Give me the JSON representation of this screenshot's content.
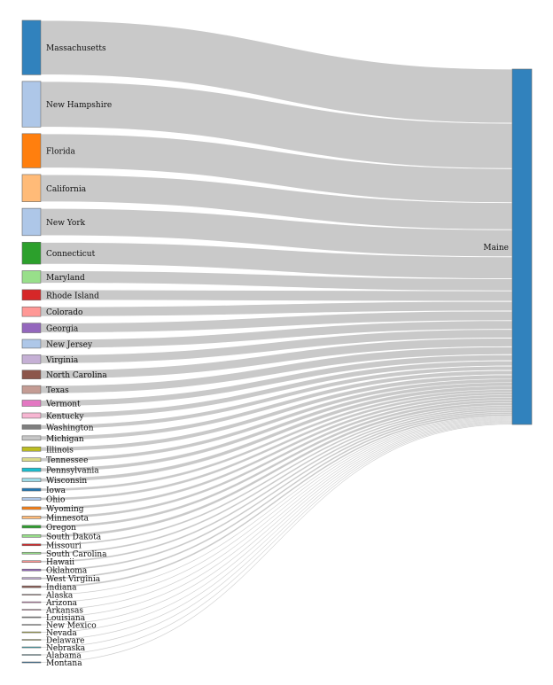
{
  "chart_data": {
    "type": "sankey",
    "target": {
      "name": "Maine",
      "color": "#3182bd"
    },
    "sources": [
      {
        "name": "Massachusetts",
        "value": 62,
        "color": "#3182bd"
      },
      {
        "name": "New Hampshire",
        "value": 52,
        "color": "#aec7e8"
      },
      {
        "name": "Florida",
        "value": 39,
        "color": "#ff7f0e"
      },
      {
        "name": "California",
        "value": 31,
        "color": "#ffbb78"
      },
      {
        "name": "New York",
        "value": 31,
        "color": "#aec7e8"
      },
      {
        "name": "Connecticut",
        "value": 25,
        "color": "#2ca02c"
      },
      {
        "name": "Maryland",
        "value": 14,
        "color": "#98df8a"
      },
      {
        "name": "Rhode Island",
        "value": 12,
        "color": "#d62728"
      },
      {
        "name": "Colorado",
        "value": 11,
        "color": "#ff9896"
      },
      {
        "name": "Georgia",
        "value": 11,
        "color": "#9467bd"
      },
      {
        "name": "New Jersey",
        "value": 10,
        "color": "#aec7e8"
      },
      {
        "name": "Virginia",
        "value": 10,
        "color": "#c5b0d5"
      },
      {
        "name": "North Carolina",
        "value": 10,
        "color": "#8c564b"
      },
      {
        "name": "Texas",
        "value": 9,
        "color": "#c49c94"
      },
      {
        "name": "Vermont",
        "value": 7,
        "color": "#e377c2"
      },
      {
        "name": "Kentucky",
        "value": 6,
        "color": "#f7b6d2"
      },
      {
        "name": "Washington",
        "value": 5,
        "color": "#7f7f7f"
      },
      {
        "name": "Michigan",
        "value": 5,
        "color": "#c7c7c7"
      },
      {
        "name": "Illinois",
        "value": 5,
        "color": "#bcbd22"
      },
      {
        "name": "Tennessee",
        "value": 4,
        "color": "#dbdb8d"
      },
      {
        "name": "Pennsylvania",
        "value": 4,
        "color": "#17becf"
      },
      {
        "name": "Wisconsin",
        "value": 4,
        "color": "#9edae5"
      },
      {
        "name": "Iowa",
        "value": 3,
        "color": "#1f77b4"
      },
      {
        "name": "Ohio",
        "value": 3,
        "color": "#aec7e8"
      },
      {
        "name": "Wyoming",
        "value": 3,
        "color": "#ff7f0e"
      },
      {
        "name": "Minnesota",
        "value": 3,
        "color": "#ffbb78"
      },
      {
        "name": "Oregon",
        "value": 3,
        "color": "#2ca02c"
      },
      {
        "name": "South Dakota",
        "value": 3,
        "color": "#98df8a"
      },
      {
        "name": "Missouri",
        "value": 2,
        "color": "#d62728"
      },
      {
        "name": "South Carolina",
        "value": 2,
        "color": "#98df8a"
      },
      {
        "name": "Hawaii",
        "value": 2,
        "color": "#ff9896"
      },
      {
        "name": "Oklahoma",
        "value": 2,
        "color": "#9467bd"
      },
      {
        "name": "West Virginia",
        "value": 2,
        "color": "#c5b0d5"
      },
      {
        "name": "Indiana",
        "value": 2,
        "color": "#8c564b"
      },
      {
        "name": "Alaska",
        "value": 1,
        "color": "#c49c94"
      },
      {
        "name": "Arizona",
        "value": 1,
        "color": "#e377c2"
      },
      {
        "name": "Arkansas",
        "value": 1,
        "color": "#f7b6d2"
      },
      {
        "name": "Louisiana",
        "value": 1,
        "color": "#7f7f7f"
      },
      {
        "name": "New Mexico",
        "value": 1,
        "color": "#c7c7c7"
      },
      {
        "name": "Nevada",
        "value": 1,
        "color": "#bcbd22"
      },
      {
        "name": "Delaware",
        "value": 1,
        "color": "#dbdb8d"
      },
      {
        "name": "Nebraska",
        "value": 1,
        "color": "#17becf"
      },
      {
        "name": "Alabama",
        "value": 1,
        "color": "#9edae5"
      },
      {
        "name": "Montana",
        "value": 1,
        "color": "#1f77b4"
      }
    ],
    "link_color": "#c6c6c6"
  }
}
